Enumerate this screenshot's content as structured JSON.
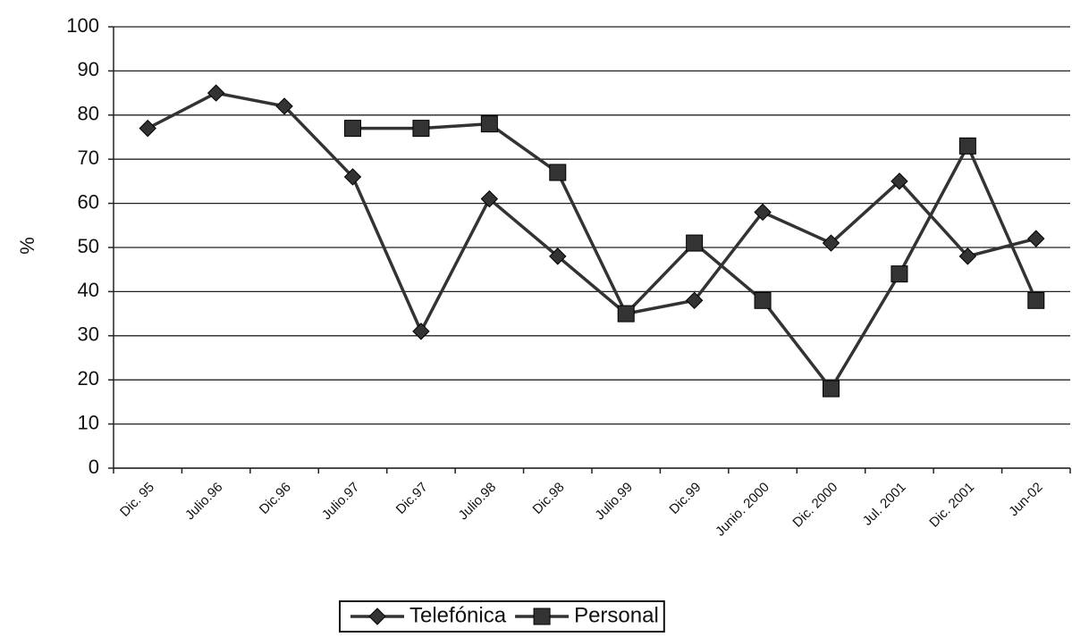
{
  "chart_data": {
    "type": "line",
    "y_label": "%",
    "categories": [
      "Dic. 95",
      "Julio.96",
      "Dic.96",
      "Julio.97",
      "Dic.97",
      "Julio.98",
      "Dic.98",
      "Julio.99",
      "Dic.99",
      "Junio. 2000",
      "Dic. 2000",
      "Jul. 2001",
      "Dic. 2001",
      "Jun-02"
    ],
    "series": [
      {
        "name": "Telefónica",
        "color": "#333333",
        "marker": "diamond",
        "values": [
          77,
          85,
          82,
          66,
          31,
          61,
          48,
          35,
          38,
          58,
          51,
          65,
          48,
          52
        ]
      },
      {
        "name": "Personal",
        "color": "#333333",
        "marker": "square",
        "values": [
          null,
          null,
          null,
          77,
          77,
          78,
          67,
          35,
          51,
          38,
          18,
          44,
          73,
          38
        ]
      }
    ],
    "ylim": [
      0,
      100
    ],
    "yticks": [
      0,
      10,
      20,
      30,
      40,
      50,
      60,
      70,
      80,
      90,
      100
    ],
    "grid": true,
    "legend": "bottom"
  }
}
